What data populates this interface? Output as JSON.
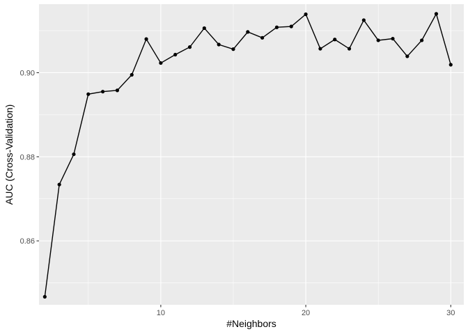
{
  "chart_data": {
    "type": "line",
    "title": "",
    "xlabel": "#Neighbors",
    "ylabel": "AUC (Cross-Validation)",
    "xlim": [
      1.6,
      30.9
    ],
    "ylim": [
      0.8448,
      0.9163
    ],
    "x_ticks": [
      10,
      20,
      30
    ],
    "x_tick_labels": [
      "10",
      "20",
      "30"
    ],
    "y_ticks": [
      0.86,
      0.88,
      0.9
    ],
    "y_tick_labels": [
      "0.86",
      "0.88",
      "0.90"
    ],
    "grid": true,
    "colors": {
      "panel": "#ebebeb",
      "grid": "#ffffff",
      "line": "#000000",
      "point": "#000000"
    },
    "series": [
      {
        "x": [
          2,
          3,
          4,
          5,
          6,
          7,
          8,
          9,
          10,
          11,
          12,
          13,
          14,
          15,
          16,
          17,
          18,
          19,
          20,
          21,
          22,
          23,
          24,
          25,
          26,
          27,
          28,
          29,
          30
        ],
        "values": [
          0.8467,
          0.8734,
          0.8806,
          0.8949,
          0.8955,
          0.8958,
          0.8995,
          0.908,
          0.9023,
          0.9043,
          0.9061,
          0.9106,
          0.9067,
          0.9056,
          0.9097,
          0.9083,
          0.9108,
          0.911,
          0.9139,
          0.9057,
          0.9079,
          0.9057,
          0.9125,
          0.9077,
          0.9081,
          0.9039,
          0.9077,
          0.914,
          0.9019
        ]
      }
    ]
  }
}
